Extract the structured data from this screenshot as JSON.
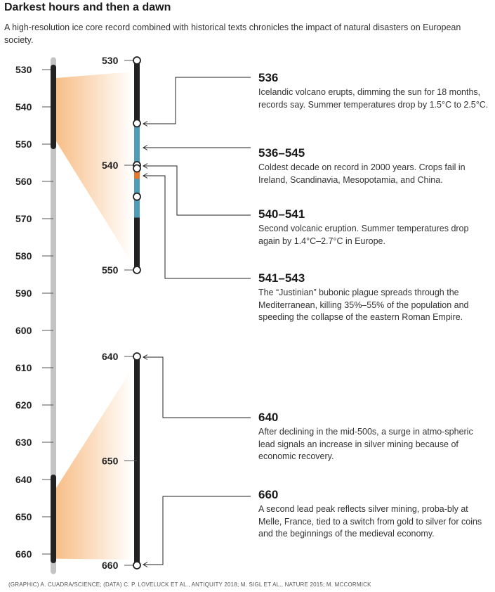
{
  "title": "Darkest hours and then a dawn",
  "subtitle": "A high-resolution ice core record combined with historical texts chronicles the impact of natural disasters on European society.",
  "chart_data": {
    "type": "timeline",
    "main_axis": {
      "range": [
        528,
        662
      ],
      "ticks": [
        530,
        540,
        550,
        560,
        570,
        580,
        590,
        600,
        610,
        620,
        630,
        640,
        650,
        660
      ]
    },
    "highlight_ranges": [
      [
        530,
        550
      ],
      [
        640,
        662
      ]
    ],
    "zoom_panels": [
      {
        "range": [
          530,
          550
        ],
        "ticks": [
          530,
          540,
          550
        ],
        "segments": [
          {
            "from": 536,
            "to": 545,
            "color": "#4f9cb8"
          },
          {
            "from": 540.3,
            "to": 541.3,
            "color": "#e8762d"
          }
        ],
        "markers": [
          530,
          536,
          540,
          540.3,
          543,
          550
        ]
      },
      {
        "range": [
          640,
          660
        ],
        "ticks": [
          640,
          650,
          660
        ],
        "segments": [],
        "markers": [
          640,
          660
        ]
      }
    ],
    "annotations": [
      {
        "year": "536",
        "text": "Icelandic volcano erupts, dimming the sun for 18 months, records say. Summer temperatures drop by 1.5°C to 2.5°C."
      },
      {
        "year": "536–545",
        "text": "Coldest decade on record in 2000 years. Crops fail in Ireland, Scandinavia, Mesopotamia, and China."
      },
      {
        "year": "540–541",
        "text": "Second volcanic eruption. Summer temperatures drop again by 1.4°C–2.7°C in Europe."
      },
      {
        "year": "541–543",
        "text": "The “Justinian” bubonic plague spreads through the Mediterranean, killing 35%–55% of the population and speeding the collapse of the eastern Roman Empire."
      },
      {
        "year": "640",
        "text": "After declining in the mid-500s, a surge in atmo-spheric lead signals an increase in silver mining because of economic recovery."
      },
      {
        "year": "660",
        "text": "A second lead peak reflects silver mining, proba-bly at Melle, France, tied to a switch from gold to silver for coins and the beginnings of the medieval economy."
      }
    ],
    "colors": {
      "bar": "#222222",
      "axis": "#c4c4c4",
      "cold": "#4f9cb8",
      "plague": "#e8762d",
      "fan": "#f7b77a"
    }
  },
  "credits": "(GRAPHIC) A. CUADRA/SCIENCE; (DATA) C. P. LOVELUCK ET AL., ANTIQUITY 2018; M. SIGL ET AL., NATURE 2015; M. MCCORMICK"
}
